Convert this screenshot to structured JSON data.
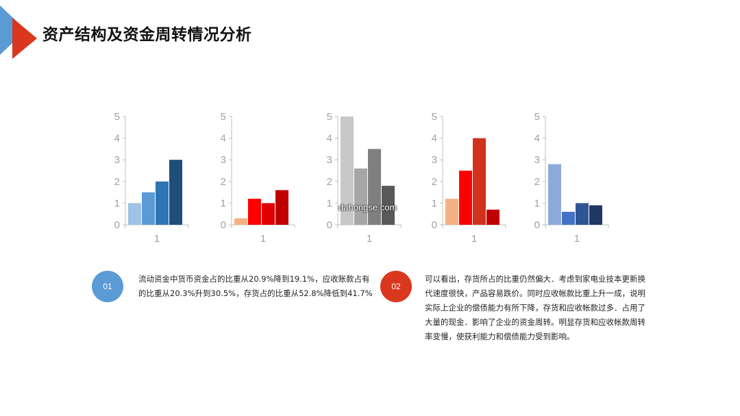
{
  "header": {
    "title": "资产结构及资金周转情况分析",
    "colors": {
      "blue": "#5b9bd5",
      "red": "#d9381e"
    }
  },
  "watermark": "dahongse.com",
  "chart_data": [
    {
      "type": "bar",
      "categories": [
        "1"
      ],
      "ylim": [
        0,
        5
      ],
      "yticks": [
        0,
        1,
        2,
        3,
        4,
        5
      ],
      "series": [
        {
          "values": [
            1
          ],
          "color": "#9dc3e6"
        },
        {
          "values": [
            1.5
          ],
          "color": "#5b9bd5"
        },
        {
          "values": [
            2
          ],
          "color": "#2e75b6"
        },
        {
          "values": [
            3
          ],
          "color": "#1f4e79"
        }
      ]
    },
    {
      "type": "bar",
      "categories": [
        "1"
      ],
      "ylim": [
        0,
        5
      ],
      "yticks": [
        0,
        1,
        2,
        3,
        4,
        5
      ],
      "series": [
        {
          "values": [
            0.3
          ],
          "color": "#f4b183"
        },
        {
          "values": [
            1.2
          ],
          "color": "#ff0000"
        },
        {
          "values": [
            1
          ],
          "color": "#e00000"
        },
        {
          "values": [
            1.6
          ],
          "color": "#c00000"
        }
      ]
    },
    {
      "type": "bar",
      "categories": [
        "1"
      ],
      "ylim": [
        0,
        5
      ],
      "yticks": [
        0,
        1,
        2,
        3,
        4,
        5
      ],
      "series": [
        {
          "values": [
            5
          ],
          "color": "#c8c8c8"
        },
        {
          "values": [
            2.6
          ],
          "color": "#a6a6a6"
        },
        {
          "values": [
            3.5
          ],
          "color": "#7f7f7f"
        },
        {
          "values": [
            1.8
          ],
          "color": "#595959"
        }
      ]
    },
    {
      "type": "bar",
      "categories": [
        "1"
      ],
      "ylim": [
        0,
        5
      ],
      "yticks": [
        0,
        1,
        2,
        3,
        4,
        5
      ],
      "series": [
        {
          "values": [
            1.2
          ],
          "color": "#f4b183"
        },
        {
          "values": [
            2.5
          ],
          "color": "#ff0000"
        },
        {
          "values": [
            4
          ],
          "color": "#d0321d"
        },
        {
          "values": [
            0.7
          ],
          "color": "#c00000"
        }
      ]
    },
    {
      "type": "bar",
      "categories": [
        "1"
      ],
      "ylim": [
        0,
        5
      ],
      "yticks": [
        0,
        1,
        2,
        3,
        4,
        5
      ],
      "series": [
        {
          "values": [
            2.8
          ],
          "color": "#8eaadb"
        },
        {
          "values": [
            0.6
          ],
          "color": "#4472c4"
        },
        {
          "values": [
            1
          ],
          "color": "#2f5597"
        },
        {
          "values": [
            0.9
          ],
          "color": "#203864"
        }
      ]
    }
  ],
  "notes": [
    {
      "badge": "01",
      "color": "#5b9bd5",
      "text": "流动资金中货币资金占的比重从20.9%降到19.1%，应收账款占有的比重从20.3%升到30.5%，存货占的比重从52.8%降低到41.7%"
    },
    {
      "badge": "02",
      "color": "#d9381e",
      "text": "可以看出，存货所占的比重仍然偏大．考虑到家电业技本更新换代速度很快，产品容易跌价。同时应收帐款比重上升一成，说明实际上企业的偿债能力有所下降，存货和应收帐款过多．占用了大量的现金．影响了企业的资金周转。明显存货和应收帐款周转率变慢，使获利能力和偿债能力受到影响。"
    }
  ]
}
